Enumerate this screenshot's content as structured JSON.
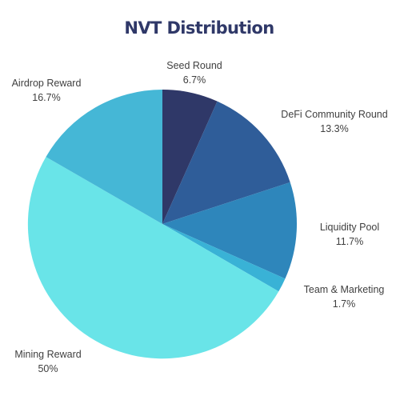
{
  "chart_data": {
    "type": "pie",
    "title": "NVT Distribution",
    "slices": [
      {
        "name": "Seed Round",
        "value": 6.7,
        "label": "6.7%",
        "color": "#2f3868"
      },
      {
        "name": "DeFi Community Round",
        "value": 13.3,
        "label": "13.3%",
        "color": "#2f5d99"
      },
      {
        "name": "Liquidity Pool",
        "value": 11.7,
        "label": "11.7%",
        "color": "#2e86bb"
      },
      {
        "name": "Team & Marketing",
        "value": 1.7,
        "label": "1.7%",
        "color": "#39b2d6"
      },
      {
        "name": "Mining Reward",
        "value": 50,
        "label": "50%",
        "color": "#69e4e8"
      },
      {
        "name": "Airdrop Reward",
        "value": 16.7,
        "label": "16.7%",
        "color": "#45b7d6"
      }
    ],
    "start_angle": "12 o'clock",
    "direction": "clockwise",
    "title_color": "#2f3868"
  }
}
